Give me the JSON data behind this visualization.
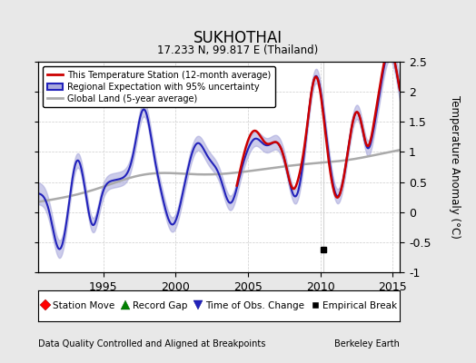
{
  "title": "SUKHOTHAI",
  "subtitle": "17.233 N, 99.817 E (Thailand)",
  "xlabel_left": "Data Quality Controlled and Aligned at Breakpoints",
  "xlabel_right": "Berkeley Earth",
  "ylabel": "Temperature Anomaly (°C)",
  "xlim": [
    1990.5,
    2015.5
  ],
  "ylim": [
    -1.0,
    2.5
  ],
  "yticks": [
    -1,
    -0.5,
    0,
    0.5,
    1,
    1.5,
    2,
    2.5
  ],
  "xticks": [
    1995,
    2000,
    2005,
    2010,
    2015
  ],
  "background_color": "#e8e8e8",
  "plot_bg_color": "#ffffff",
  "grid_color": "#cccccc",
  "station_color": "#cc0000",
  "regional_color": "#2222bb",
  "regional_fill_color": "#aaaadd",
  "global_color": "#aaaaaa",
  "empirical_break_year": 2010.2,
  "empirical_break_value": -0.62
}
